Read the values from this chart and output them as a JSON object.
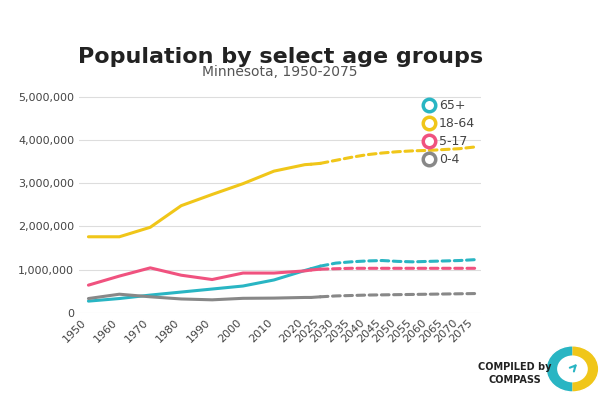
{
  "title": "Population by select age groups",
  "subtitle": "Minnesota, 1950-2075",
  "series": {
    "65+": {
      "color": "#29b5c3",
      "solid_years": [
        1950,
        1960,
        1970,
        1980,
        1990,
        2000,
        2010,
        2020,
        2022
      ],
      "solid_values": [
        270000,
        330000,
        410000,
        480000,
        550000,
        620000,
        760000,
        980000,
        1020000
      ],
      "dotted_years": [
        2025,
        2030,
        2035,
        2040,
        2045,
        2050,
        2055,
        2060,
        2065,
        2070,
        2075
      ],
      "dotted_values": [
        1080000,
        1150000,
        1180000,
        1200000,
        1210000,
        1190000,
        1180000,
        1190000,
        1200000,
        1210000,
        1230000
      ]
    },
    "18-64": {
      "color": "#f0c619",
      "solid_years": [
        1950,
        1960,
        1970,
        1980,
        1990,
        2000,
        2010,
        2020,
        2022
      ],
      "solid_values": [
        1760000,
        1760000,
        1980000,
        2480000,
        2740000,
        2990000,
        3280000,
        3430000,
        3440000
      ],
      "dotted_years": [
        2025,
        2030,
        2035,
        2040,
        2045,
        2050,
        2055,
        2060,
        2065,
        2070,
        2075
      ],
      "dotted_values": [
        3460000,
        3530000,
        3600000,
        3660000,
        3700000,
        3730000,
        3750000,
        3760000,
        3780000,
        3800000,
        3840000
      ]
    },
    "5-17": {
      "color": "#f0527f",
      "solid_years": [
        1950,
        1960,
        1970,
        1980,
        1990,
        2000,
        2010,
        2020,
        2022
      ],
      "solid_values": [
        640000,
        850000,
        1040000,
        870000,
        770000,
        920000,
        920000,
        970000,
        990000
      ],
      "dotted_years": [
        2025,
        2030,
        2035,
        2040,
        2045,
        2050,
        2055,
        2060,
        2065,
        2070,
        2075
      ],
      "dotted_values": [
        1010000,
        1020000,
        1030000,
        1030000,
        1030000,
        1030000,
        1030000,
        1030000,
        1030000,
        1030000,
        1030000
      ]
    },
    "0-4": {
      "color": "#888888",
      "solid_years": [
        1950,
        1960,
        1970,
        1980,
        1990,
        2000,
        2010,
        2020,
        2022
      ],
      "solid_values": [
        330000,
        430000,
        370000,
        320000,
        300000,
        335000,
        340000,
        355000,
        355000
      ],
      "dotted_years": [
        2025,
        2030,
        2035,
        2040,
        2045,
        2050,
        2055,
        2060,
        2065,
        2070,
        2075
      ],
      "dotted_values": [
        370000,
        390000,
        400000,
        410000,
        415000,
        420000,
        425000,
        430000,
        435000,
        440000,
        445000
      ]
    }
  },
  "ylim": [
    0,
    5200000
  ],
  "yticks": [
    0,
    1000000,
    2000000,
    3000000,
    4000000,
    5000000
  ],
  "xtick_solid": [
    1950,
    1960,
    1970,
    1980,
    1990,
    2000,
    2010,
    2020
  ],
  "xtick_dotted": [
    2025,
    2030,
    2035,
    2040,
    2045,
    2050,
    2055,
    2060,
    2065,
    2070,
    2075
  ],
  "legend_order": [
    "65+",
    "18-64",
    "5-17",
    "0-4"
  ],
  "background_color": "#ffffff",
  "grid_color": "#dddddd",
  "title_fontsize": 16,
  "subtitle_fontsize": 10,
  "axis_fontsize": 8,
  "legend_fontsize": 9,
  "linewidth": 2.2,
  "compiled_text": "COMPILED by\nCOMPASS"
}
